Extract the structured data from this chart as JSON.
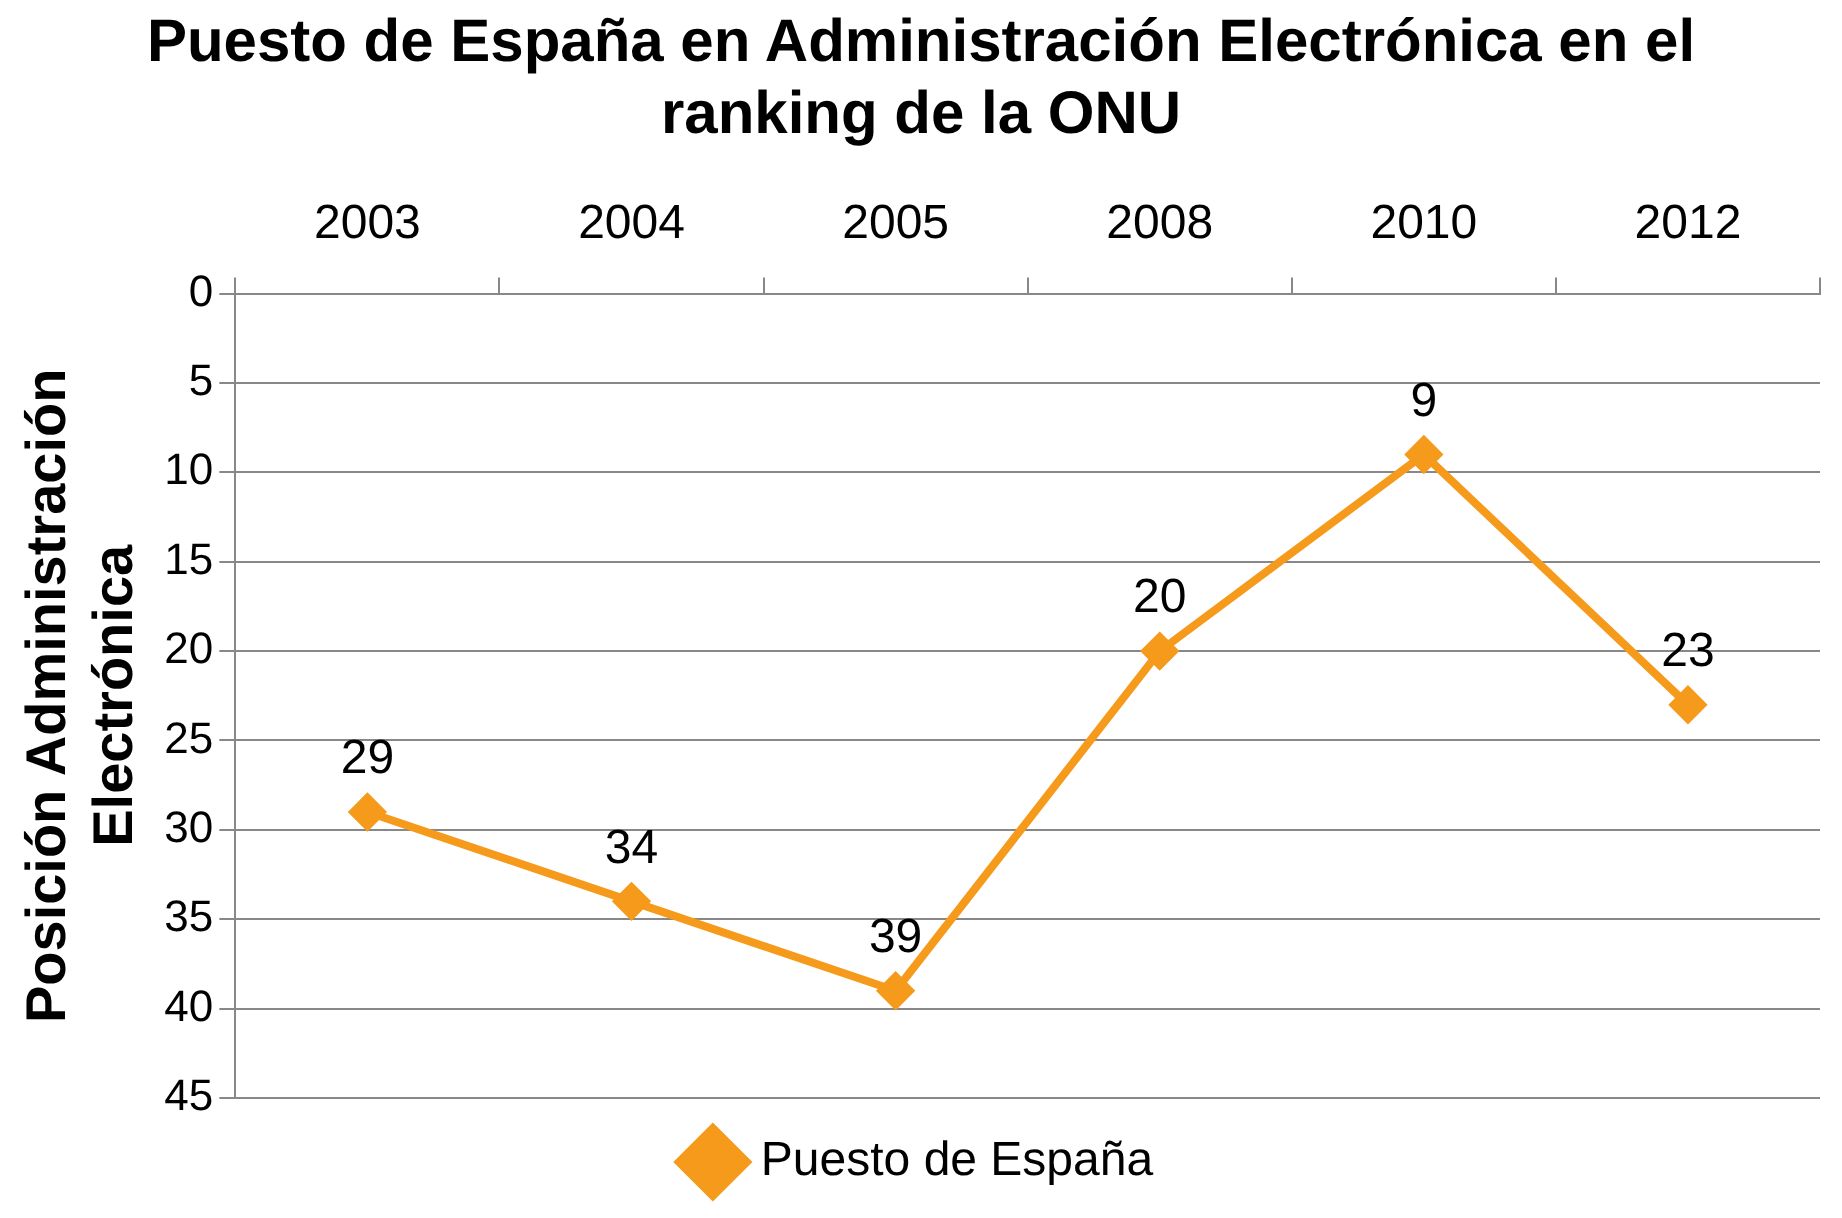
{
  "chart_data": {
    "type": "line",
    "title": "Puesto de España en Administración Electrónica en el ranking de la ONU",
    "ylabel": "Posición Administración Electrónica",
    "categories": [
      "2003",
      "2004",
      "2005",
      "2008",
      "2010",
      "2012"
    ],
    "series": [
      {
        "name": "Puesto de España",
        "color": "#f59a1b",
        "values": [
          29,
          34,
          39,
          20,
          9,
          23
        ]
      }
    ],
    "ylim": [
      45,
      0
    ],
    "yticks": [
      0,
      5,
      10,
      15,
      20,
      25,
      30,
      35,
      40,
      45
    ],
    "grid": "y",
    "legend": "bottom",
    "marker": "diamond",
    "line_style": "solid",
    "data_labels": true
  }
}
